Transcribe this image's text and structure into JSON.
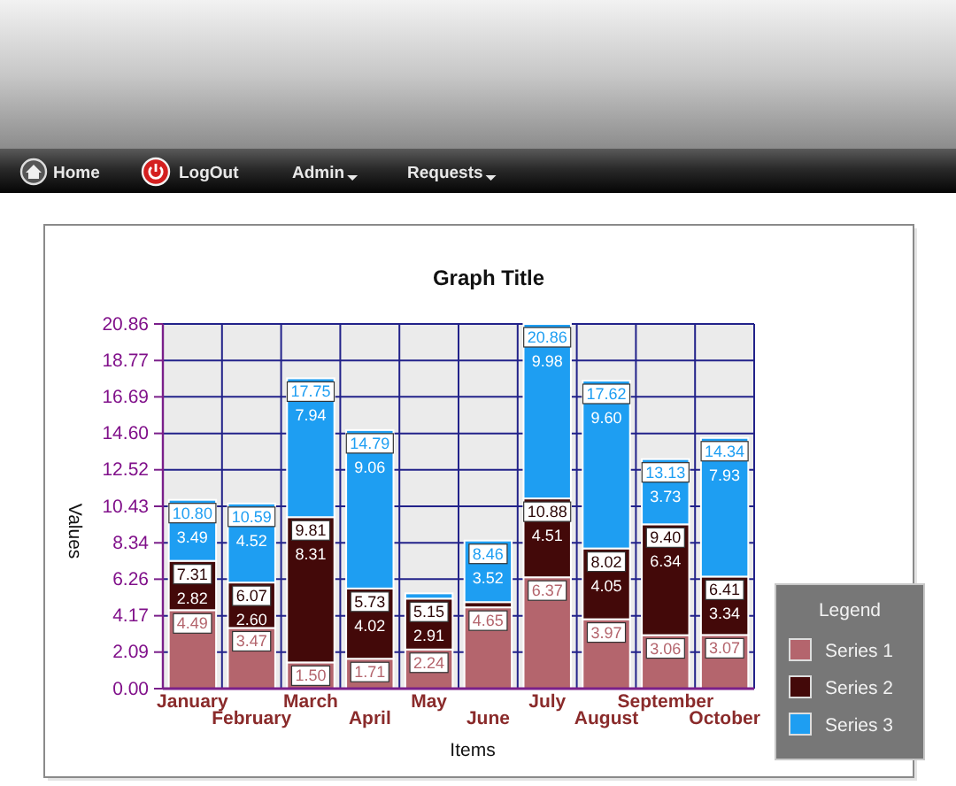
{
  "chart_data": {
    "type": "bar",
    "title": "Graph Title",
    "xlabel": "Items",
    "ylabel": "Values",
    "legend_title": "Legend",
    "categories": [
      "January",
      "February",
      "March",
      "April",
      "May",
      "June",
      "July",
      "August",
      "September",
      "October"
    ],
    "stacked": true,
    "series": [
      {
        "name": "Series 1",
        "color": "#b4656d",
        "values": [
          4.49,
          3.47,
          1.5,
          1.71,
          2.24,
          4.65,
          6.37,
          3.97,
          3.06,
          3.07
        ],
        "value_labels": [
          "4.49",
          "3.47",
          "1.50",
          "1.71",
          "2.24",
          "4.65",
          "6.37",
          "3.97",
          "3.06",
          "3.07"
        ]
      },
      {
        "name": "Series 2",
        "color": "#430909",
        "values": [
          2.82,
          2.6,
          8.31,
          4.02,
          2.91,
          0.3,
          4.51,
          4.05,
          6.34,
          3.34
        ],
        "value_labels": [
          "2.82",
          "2.60",
          "8.31",
          "4.02",
          "2.91",
          null,
          "4.51",
          "4.05",
          "6.34",
          "3.34"
        ]
      },
      {
        "name": "Series 3",
        "color": "#1e9ef2",
        "values": [
          3.49,
          4.52,
          7.94,
          9.06,
          0.3,
          3.52,
          9.98,
          9.6,
          3.73,
          7.93
        ],
        "value_labels": [
          "3.49",
          "4.52",
          "7.94",
          "9.06",
          null,
          "3.52",
          "9.98",
          "9.60",
          "3.73",
          "7.93"
        ]
      }
    ],
    "totals": [
      "10.80",
      "10.59",
      "17.75",
      "14.79",
      null,
      "8.46",
      "20.86",
      "17.62",
      "13.13",
      "14.34"
    ],
    "annotations": [
      "Home",
      "LogOut",
      "Admin",
      "Requests",
      {
        "text": "7.31",
        "x": "January",
        "y": 7.31
      },
      {
        "text": "6.07",
        "x": "February",
        "y": 6.07
      },
      {
        "text": "9.81",
        "x": "March",
        "y": 9.81
      },
      {
        "text": "5.73",
        "x": "April",
        "y": 5.73
      },
      {
        "text": "5.15",
        "x": "May",
        "y": 5.15
      },
      {
        "text": "10.88",
        "x": "July",
        "y": 10.88
      },
      {
        "text": "8.02",
        "x": "August",
        "y": 8.02
      },
      {
        "text": "9.40",
        "x": "September",
        "y": 9.4
      },
      {
        "text": "6.41",
        "x": "October",
        "y": 6.41
      }
    ],
    "ylim": [
      0,
      20.86
    ],
    "yticks": [
      {
        "value": 0,
        "label": "0.00"
      },
      2.09,
      4.17,
      6.26,
      8.34,
      10.43,
      12.52,
      {
        "value": 14.6,
        "label": "14.60"
      },
      16.69,
      18.77,
      20.86
    ],
    "grid": true,
    "legend": "bottom right"
  }
}
